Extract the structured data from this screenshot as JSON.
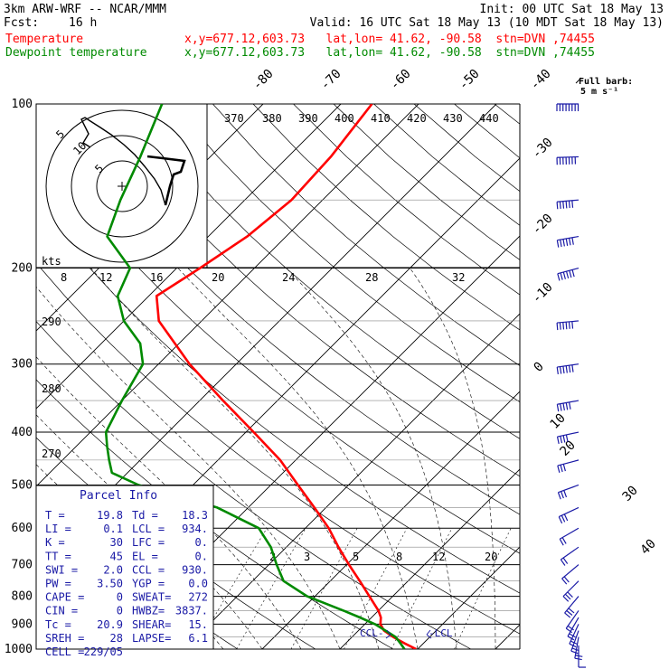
{
  "header": {
    "title": "3km ARW-WRF -- NCAR/MMM",
    "init": "Init: 00 UTC Sat 18 May 13",
    "fcst_label": "Fcst:",
    "fcst_value": "16 h",
    "valid": "Valid: 16 UTC Sat 18 May 13 (10 MDT Sat 18 May 13)",
    "temp_label": "Temperature",
    "dew_label": "Dewpoint temperature",
    "location_line": "x,y=677.12,603.73   lat,lon= 41.62, -90.58  stn=DVN ,74455"
  },
  "colors": {
    "temperature": "#ff0000",
    "dewpoint": "#008a00",
    "wind": "#1a1aa6",
    "grid": "#000000"
  },
  "chart_data": {
    "type": "line",
    "title": "",
    "xlabel": "",
    "ylabel": "",
    "y_scale": "log-pressure",
    "ylim": [
      1000,
      100
    ],
    "y_ticks": [
      100,
      200,
      300,
      400,
      500,
      600,
      700,
      800,
      900,
      1000
    ],
    "isotherm_labels": [
      "-80",
      "-70",
      "-60",
      "-50",
      "-40",
      "-30",
      "-20",
      "-10",
      "0",
      "10",
      "20",
      "30",
      "40"
    ],
    "theta_labels": [
      "370",
      "380",
      "390",
      "400",
      "410",
      "420",
      "430",
      "440",
      "290",
      "280",
      "270"
    ],
    "mixing_ratio_labels": [
      "2",
      "3",
      "5",
      "8",
      "12",
      "20"
    ],
    "series": [
      {
        "name": "Temperature",
        "p": [
          1000,
          975,
          950,
          925,
          900,
          875,
          850,
          800,
          750,
          700,
          650,
          600,
          550,
          500,
          450,
          400,
          350,
          300,
          250,
          225,
          200,
          175,
          150,
          125,
          100
        ],
        "t": [
          19.8,
          17.5,
          15.3,
          13.3,
          12.0,
          11.2,
          10.0,
          7.0,
          3.8,
          0.3,
          -3.3,
          -7.0,
          -11.5,
          -16.5,
          -22.0,
          -29.0,
          -37.0,
          -46.0,
          -55.5,
          -59.0,
          -57.0,
          -55.0,
          -54.0,
          -54.5,
          -56.0
        ]
      },
      {
        "name": "Dewpoint temperature",
        "p": [
          1000,
          975,
          950,
          925,
          900,
          875,
          850,
          800,
          750,
          700,
          650,
          600,
          550,
          500,
          475,
          450,
          425,
          400,
          350,
          300,
          275,
          250,
          225,
          200,
          175,
          150,
          125,
          100
        ],
        "t": [
          18.3,
          17.0,
          15.6,
          13.5,
          11.3,
          8.5,
          5.5,
          -1.0,
          -6.0,
          -9.0,
          -12.0,
          -16.0,
          -24.0,
          -37.0,
          -42.0,
          -44.0,
          -46.0,
          -48.0,
          -50.0,
          -52.0,
          -55.0,
          -60.0,
          -64.0,
          -66.0,
          -73.0,
          -76.0,
          -79.0,
          -83.0
        ]
      }
    ],
    "wind_barbs": {
      "label": "Full barb:",
      "unit": "5 m s⁻¹",
      "p": [
        985,
        950,
        925,
        900,
        875,
        850,
        800,
        750,
        700,
        650,
        600,
        550,
        500,
        450,
        400,
        350,
        300,
        250,
        200,
        175,
        150,
        125,
        100
      ],
      "speed_ms": [
        5,
        8,
        10,
        11,
        12,
        12,
        13,
        13,
        12,
        12,
        12,
        13,
        15,
        17,
        20,
        24,
        28,
        30,
        28,
        30,
        32,
        35,
        38
      ],
      "direction_deg": [
        180,
        190,
        200,
        205,
        210,
        215,
        220,
        225,
        230,
        235,
        240,
        245,
        250,
        255,
        258,
        260,
        262,
        265,
        255,
        260,
        265,
        268,
        270
      ]
    },
    "hodograph": {
      "unit_label": "kts",
      "speed_labels": [
        "5",
        "10",
        "5"
      ],
      "temp_scale_labels": [
        "8",
        "12",
        "16",
        "20",
        "24",
        "28",
        "32"
      ]
    }
  },
  "parcel_info": {
    "title": "Parcel Info",
    "rows": [
      [
        "T  =",
        "19.8",
        "Td =",
        "18.3"
      ],
      [
        "LI =",
        "0.1",
        "LCL =",
        "934."
      ],
      [
        "K  =",
        "30",
        "LFC =",
        "0."
      ],
      [
        "TT =",
        "45",
        "EL =",
        "0."
      ],
      [
        "SWI =",
        "2.0",
        "CCL =",
        "930."
      ],
      [
        "PW =",
        "3.50",
        "YGP =",
        "0.0"
      ],
      [
        "CAPE =",
        "0",
        "SWEAT=",
        "272"
      ],
      [
        "CIN =",
        "0",
        "HWBZ=",
        "3837."
      ],
      [
        "Tc =",
        "20.9",
        "SHEAR=",
        "15."
      ],
      [
        "SREH =",
        "28",
        "LAPSE=",
        "6.1"
      ],
      [
        "CELL =",
        "229/05",
        "",
        ""
      ]
    ],
    "ccl_marker": "CCL",
    "lcl_marker": "LCL"
  }
}
